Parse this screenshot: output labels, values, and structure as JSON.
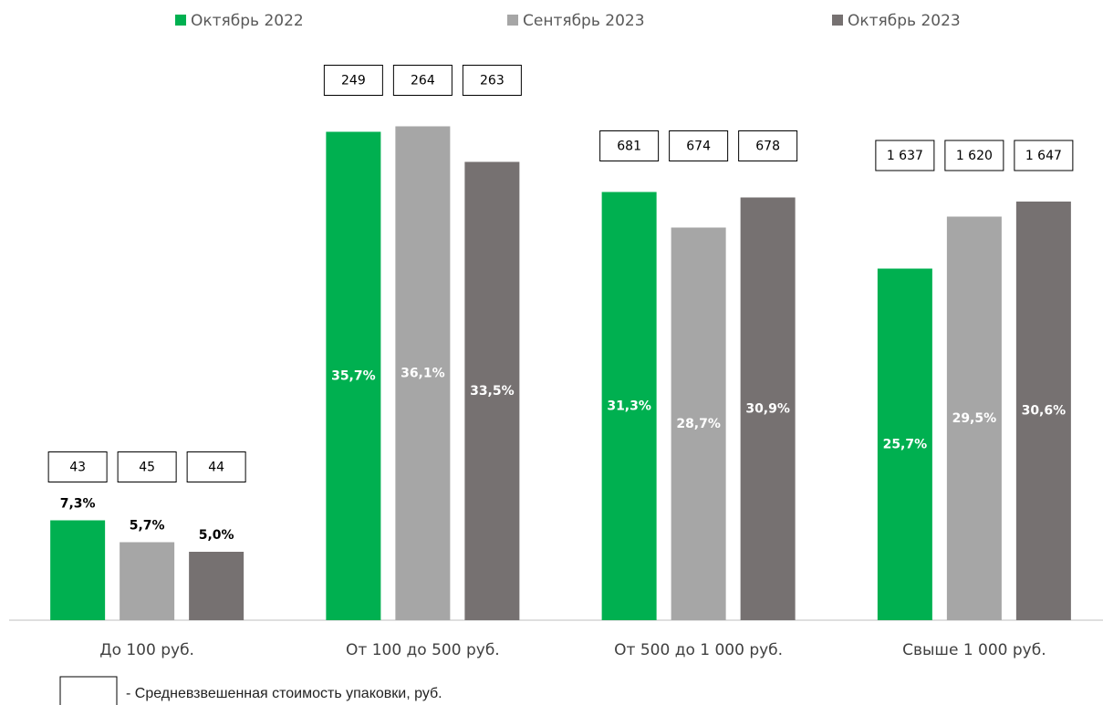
{
  "chart_data": {
    "type": "bar",
    "categories": [
      "До 100 руб.",
      "От 100 до 500 руб.",
      "От 500 до 1 000 руб.",
      "Свыше 1 000 руб."
    ],
    "series": [
      {
        "name": "Октябрь 2022",
        "color": "#00b050",
        "values": [
          7.3,
          35.7,
          31.3,
          25.7
        ],
        "value_labels": [
          "7,3%",
          "35,7%",
          "31,3%",
          "25,7%"
        ],
        "prices": [
          "43",
          "249",
          "681",
          "1 637"
        ]
      },
      {
        "name": "Сентябрь 2023",
        "color": "#a6a6a6",
        "values": [
          5.7,
          36.1,
          28.7,
          29.5
        ],
        "value_labels": [
          "5,7%",
          "36,1%",
          "28,7%",
          "29,5%"
        ],
        "prices": [
          "45",
          "264",
          "674",
          "1 620"
        ]
      },
      {
        "name": "Октябрь 2023",
        "color": "#767171",
        "values": [
          5.0,
          33.5,
          30.9,
          30.6
        ],
        "value_labels": [
          "5,0%",
          "33,5%",
          "30,9%",
          "30,6%"
        ],
        "prices": [
          "44",
          "263",
          "678",
          "1 647"
        ]
      }
    ],
    "ylim": [
      0,
      40
    ],
    "note": "- Средневзвешенная стоимость упаковки, руб."
  }
}
